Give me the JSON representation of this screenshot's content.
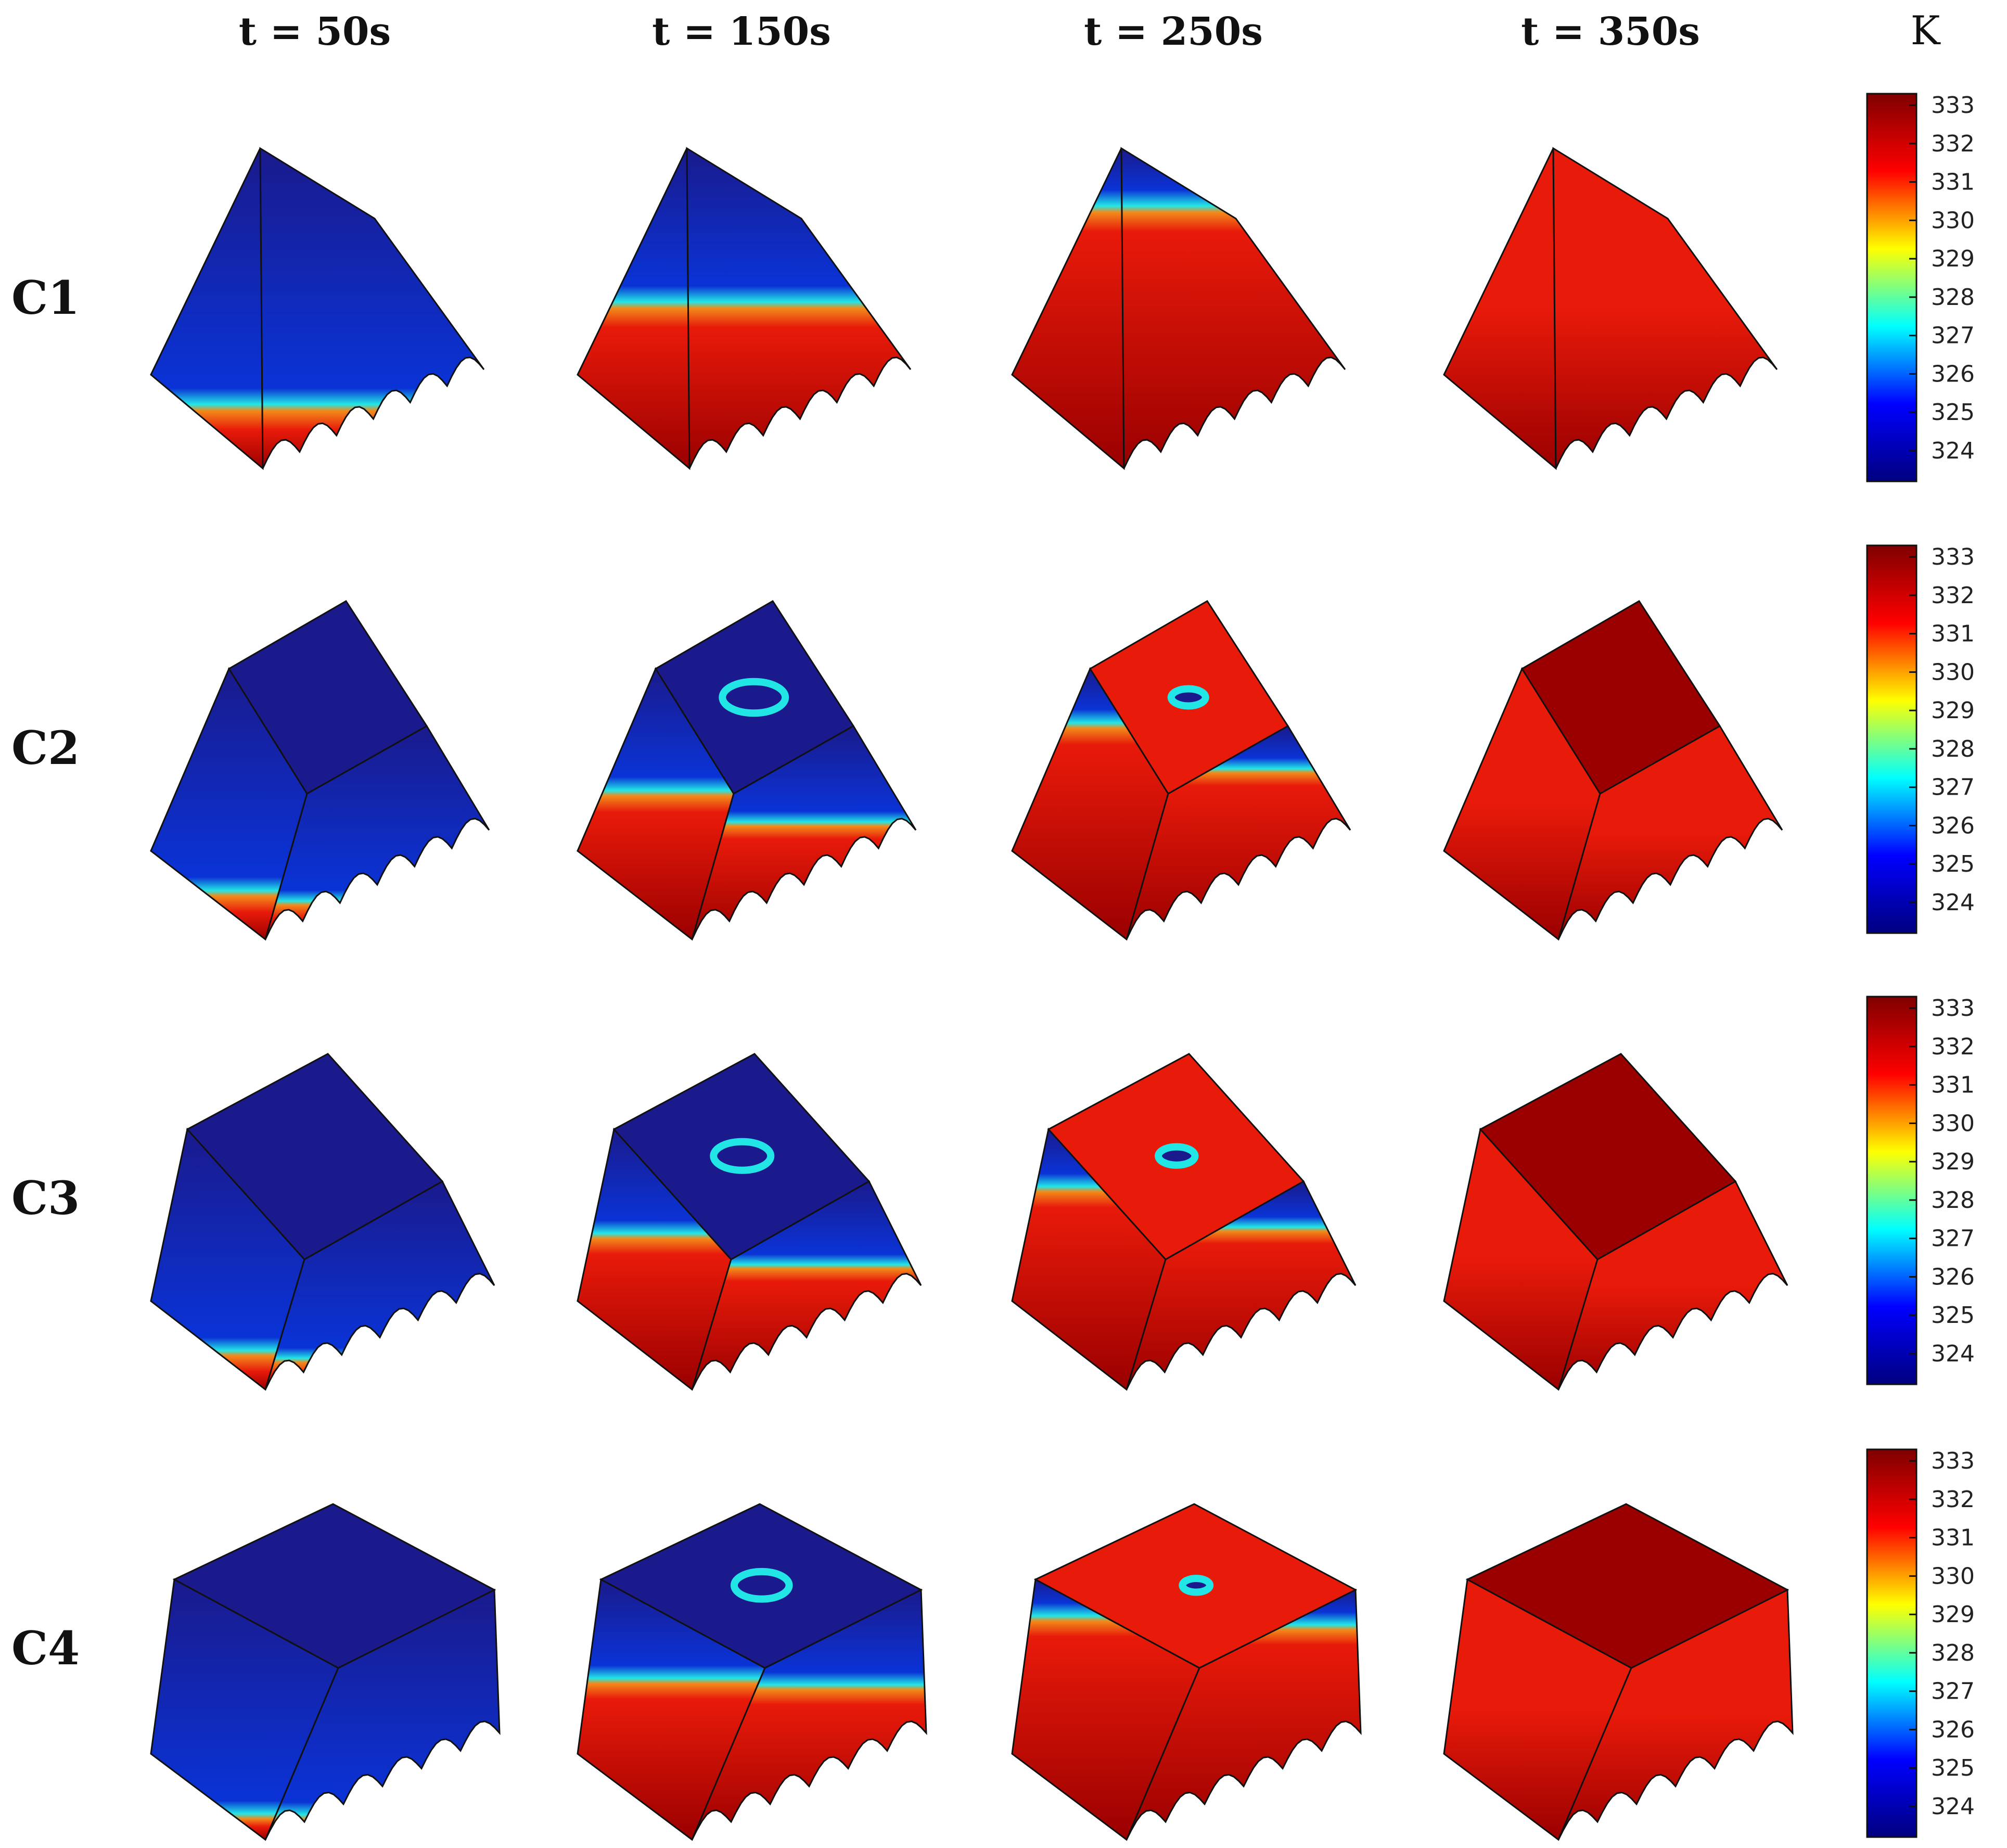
{
  "columns": [
    {
      "label": "t = 50s"
    },
    {
      "label": "t = 150s"
    },
    {
      "label": "t = 250s"
    },
    {
      "label": "t = 350s"
    }
  ],
  "rows": [
    {
      "label": "C1",
      "shape": "ridge"
    },
    {
      "label": "C2",
      "shape": "trapezoid-narrow"
    },
    {
      "label": "C3",
      "shape": "trapezoid-wide"
    },
    {
      "label": "C4",
      "shape": "box"
    }
  ],
  "colorbar": {
    "unit": "K",
    "ticks": [
      "333",
      "332",
      "331",
      "330",
      "329",
      "328",
      "327",
      "326",
      "325",
      "324"
    ],
    "min": 323.2,
    "max": 333.3,
    "colormap": [
      "#00007f",
      "#0000ff",
      "#00ffff",
      "#ffff00",
      "#ff0000",
      "#7f0000"
    ]
  },
  "palette": {
    "cold": "#1a1a8c",
    "cool": "#0a33d6",
    "cyan": "#22e6e6",
    "warm": "#f28a1a",
    "hot": "#e81a0a",
    "dark_red": "#9a0000",
    "edge": "#111111"
  },
  "melt_fraction": [
    [
      0.2,
      0.52,
      0.82,
      1.0
    ],
    [
      0.18,
      0.55,
      0.8,
      1.0
    ],
    [
      0.15,
      0.6,
      0.78,
      1.0
    ],
    [
      0.1,
      0.62,
      0.86,
      1.0
    ]
  ]
}
